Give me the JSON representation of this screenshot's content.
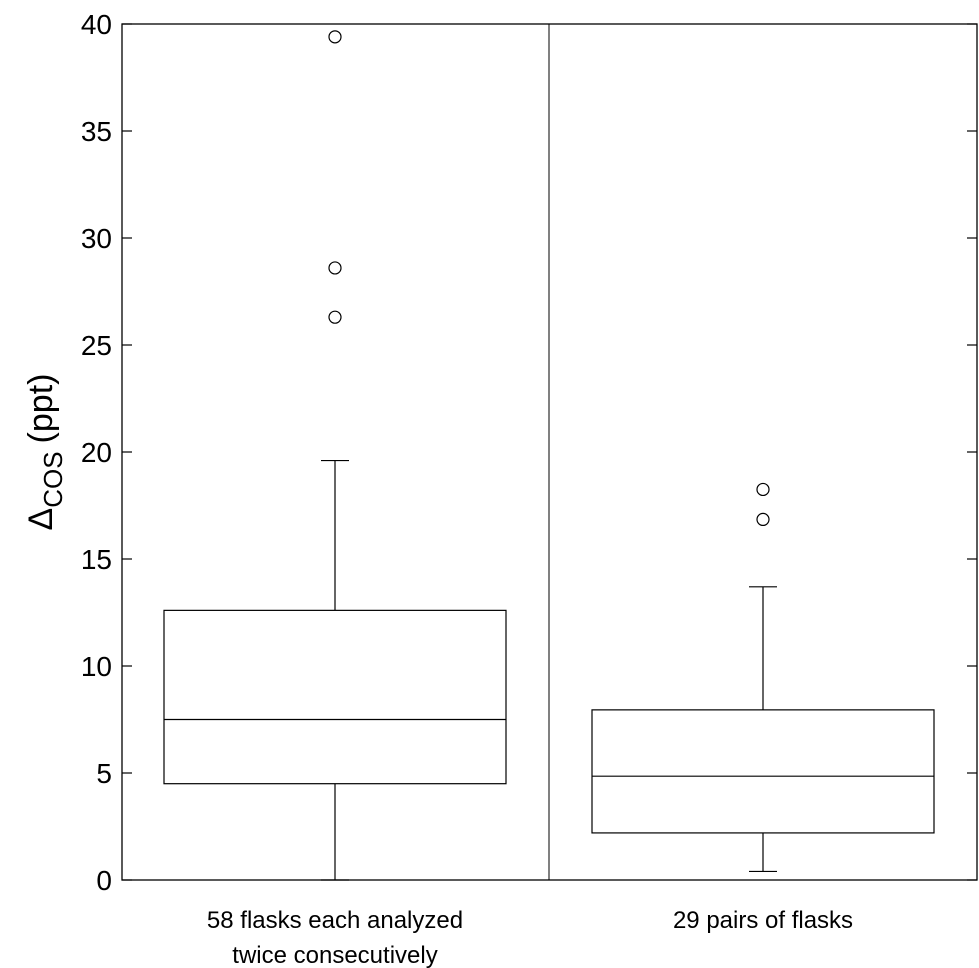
{
  "chart_data": {
    "type": "box",
    "ylabel_main": "Δ",
    "ylabel_sub": "COS",
    "ylabel_unit": "(ppt)",
    "ylim": [
      0,
      40
    ],
    "yticks": [
      0,
      5,
      10,
      15,
      20,
      25,
      30,
      35,
      40
    ],
    "grid": false,
    "categories": [
      {
        "lines": [
          "58 flasks each analyzed",
          "twice consecutively"
        ]
      },
      {
        "lines": [
          "29 pairs of flasks"
        ]
      }
    ],
    "boxes": [
      {
        "whisker_low": 0.0,
        "q1": 4.5,
        "median": 7.5,
        "q3": 12.6,
        "whisker_high": 19.6,
        "outliers": [
          26.3,
          28.6,
          39.4
        ]
      },
      {
        "whisker_low": 0.4,
        "q1": 2.2,
        "median": 4.85,
        "q3": 7.95,
        "whisker_high": 13.7,
        "outliers": [
          16.85,
          18.25
        ]
      }
    ]
  }
}
